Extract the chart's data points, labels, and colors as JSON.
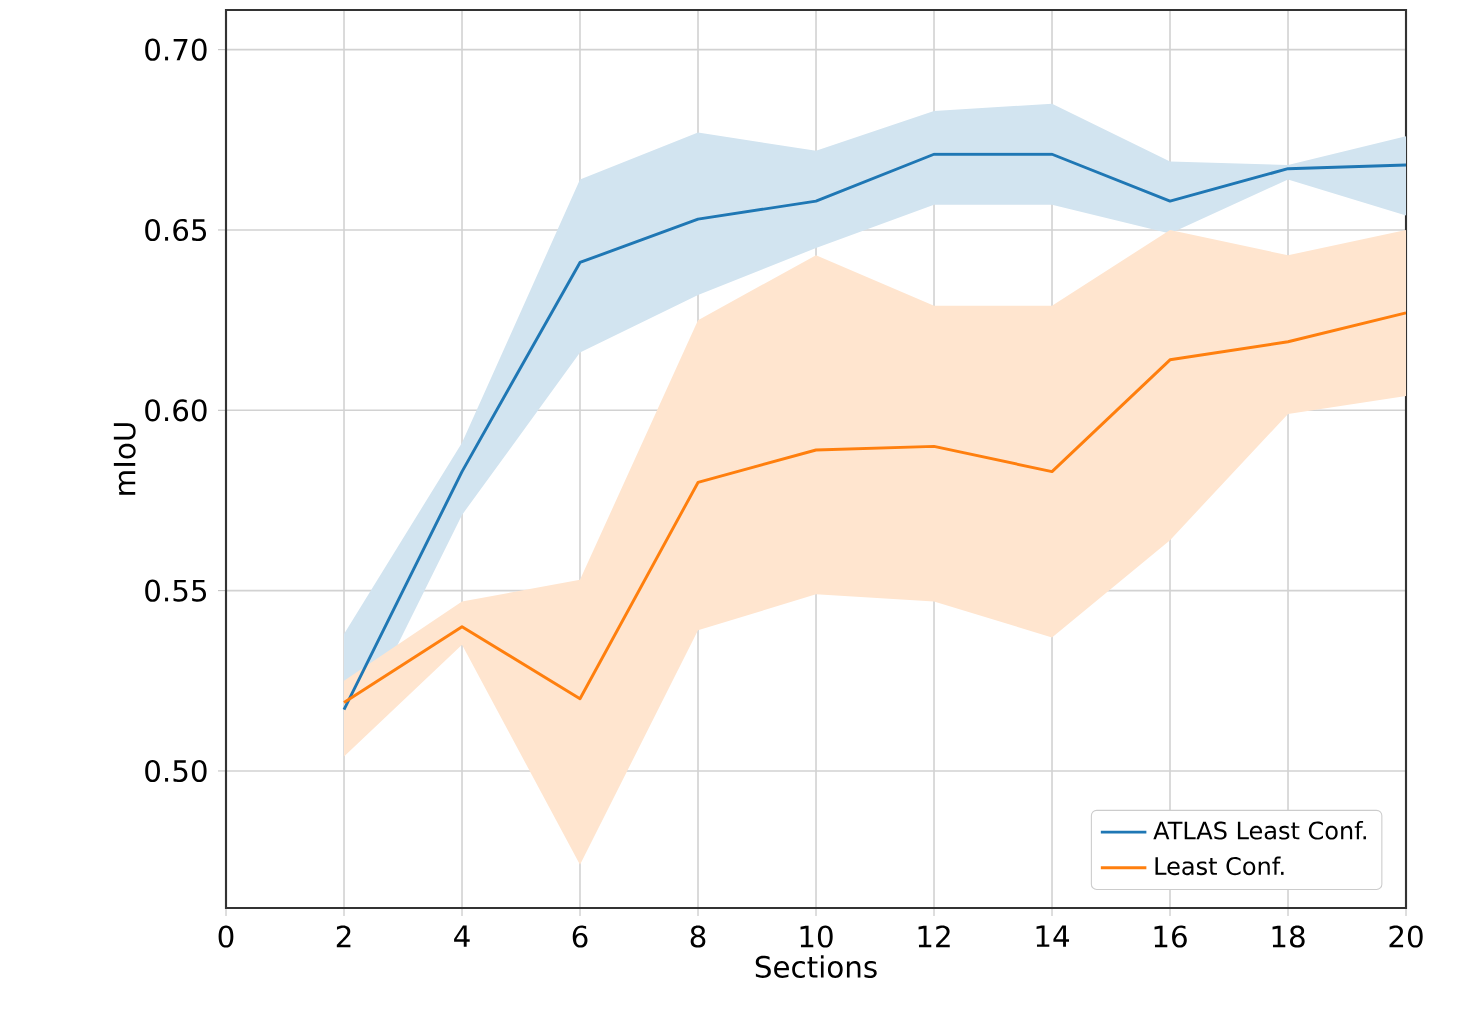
{
  "chart_data": {
    "type": "line",
    "xlabel": "Sections",
    "ylabel": "mIoU",
    "x": [
      2,
      4,
      6,
      8,
      10,
      12,
      14,
      16,
      18,
      20
    ],
    "series": [
      {
        "name": "ATLAS Least Conf.",
        "color": "#1f77b4",
        "values": [
          0.517,
          0.583,
          0.641,
          0.653,
          0.658,
          0.671,
          0.671,
          0.658,
          0.667,
          0.668
        ],
        "lower": [
          0.505,
          0.571,
          0.616,
          0.632,
          0.645,
          0.657,
          0.657,
          0.649,
          0.664,
          0.654
        ],
        "upper": [
          0.538,
          0.591,
          0.664,
          0.677,
          0.672,
          0.683,
          0.685,
          0.669,
          0.668,
          0.676
        ]
      },
      {
        "name": "Least Conf.",
        "color": "#ff7f0e",
        "values": [
          0.519,
          0.54,
          0.52,
          0.58,
          0.589,
          0.59,
          0.583,
          0.614,
          0.619,
          0.627
        ],
        "lower": [
          0.504,
          0.535,
          0.474,
          0.539,
          0.549,
          0.547,
          0.537,
          0.564,
          0.599,
          0.604
        ],
        "upper": [
          0.525,
          0.547,
          0.553,
          0.625,
          0.643,
          0.629,
          0.629,
          0.65,
          0.643,
          0.65
        ]
      }
    ],
    "xlim": [
      0,
      20
    ],
    "ylim": [
      0.462,
      0.711
    ],
    "xticks": [
      0,
      2,
      4,
      6,
      8,
      10,
      12,
      14,
      16,
      18,
      20
    ],
    "yticks": [
      {
        "value": 0.5,
        "label": "0.50"
      },
      {
        "value": 0.55,
        "label": "0.55"
      },
      {
        "value": 0.6,
        "label": "0.60"
      },
      {
        "value": 0.65,
        "label": "0.65"
      },
      {
        "value": 0.7,
        "label": "0.70"
      }
    ],
    "grid": true,
    "legend": "bottom right"
  }
}
